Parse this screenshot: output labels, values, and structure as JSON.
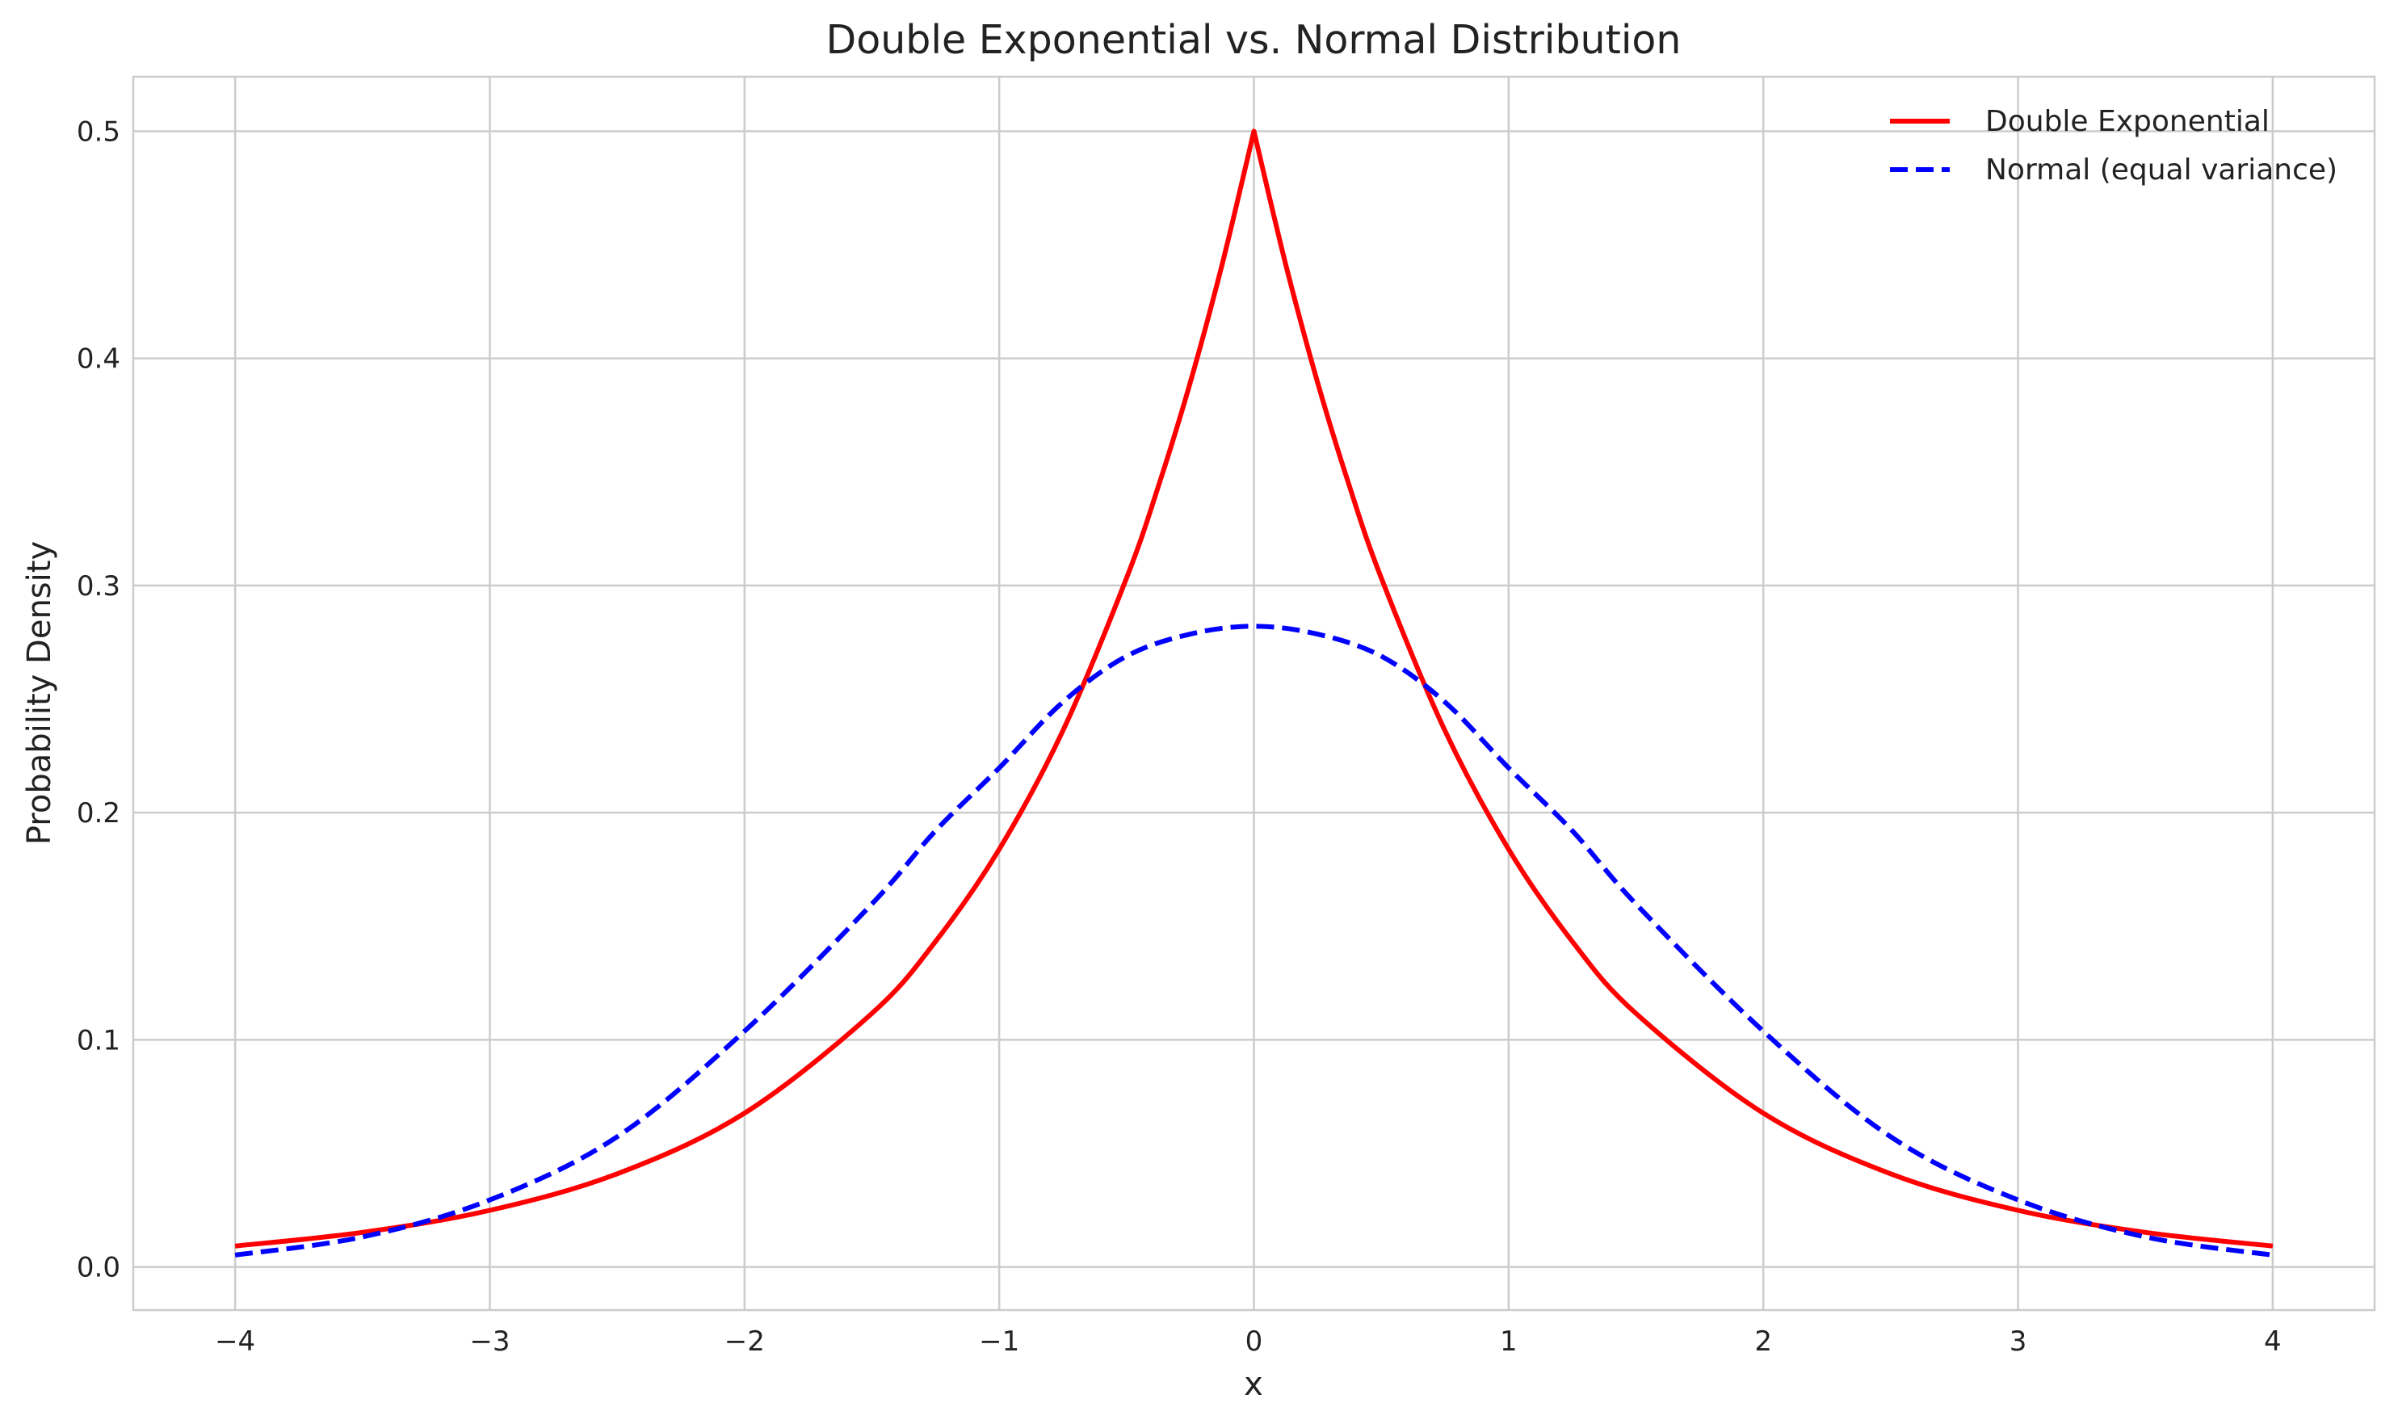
{
  "chart_data": {
    "type": "line",
    "title": "Double Exponential vs. Normal Distribution",
    "xlabel": "x",
    "ylabel": "Probability Density",
    "xlim": [
      -4.4,
      4.4
    ],
    "ylim": [
      -0.019,
      0.524
    ],
    "x_ticks": [
      -4,
      -3,
      -2,
      -1,
      0,
      1,
      2,
      3,
      4
    ],
    "x_tick_labels": [
      "−4",
      "−3",
      "−2",
      "−1",
      "0",
      "1",
      "2",
      "3",
      "4"
    ],
    "y_ticks": [
      0.0,
      0.1,
      0.2,
      0.3,
      0.4,
      0.5
    ],
    "y_tick_labels": [
      "0.0",
      "0.1",
      "0.2",
      "0.3",
      "0.4",
      "0.5"
    ],
    "grid": true,
    "legend_position": "top-right",
    "series": [
      {
        "name": "Double Exponential",
        "color": "#ff0000",
        "line_style": "solid",
        "x": [
          -4.0,
          -3.5,
          -3.0,
          -2.5,
          -2.0,
          -1.5,
          -1.25,
          -1.0,
          -0.75,
          -0.5,
          -0.375,
          -0.25,
          -0.125,
          0.0,
          0.125,
          0.25,
          0.375,
          0.5,
          0.75,
          1.0,
          1.25,
          1.5,
          2.0,
          2.5,
          3.0,
          3.5,
          4.0
        ],
        "y": [
          0.0092,
          0.0152,
          0.0249,
          0.041,
          0.0677,
          0.1116,
          0.1433,
          0.1839,
          0.2361,
          0.3033,
          0.3437,
          0.3894,
          0.4413,
          0.5,
          0.4413,
          0.3894,
          0.3437,
          0.3033,
          0.2361,
          0.1839,
          0.1433,
          0.1116,
          0.0677,
          0.041,
          0.0249,
          0.0152,
          0.0092
        ]
      },
      {
        "name": "Normal (equal variance)",
        "color": "#0000ff",
        "line_style": "dashed",
        "x": [
          -4.0,
          -3.5,
          -3.0,
          -2.5,
          -2.0,
          -1.5,
          -1.25,
          -1.0,
          -0.75,
          -0.5,
          -0.25,
          0.0,
          0.25,
          0.5,
          0.75,
          1.0,
          1.25,
          1.5,
          2.0,
          2.5,
          3.0,
          3.5,
          4.0
        ],
        "y": [
          0.0052,
          0.0132,
          0.0295,
          0.0573,
          0.1038,
          0.1598,
          0.192,
          0.2197,
          0.2487,
          0.2689,
          0.2786,
          0.2821,
          0.2786,
          0.2689,
          0.2487,
          0.2197,
          0.192,
          0.1598,
          0.1038,
          0.0573,
          0.0295,
          0.0132,
          0.0052
        ]
      }
    ]
  }
}
